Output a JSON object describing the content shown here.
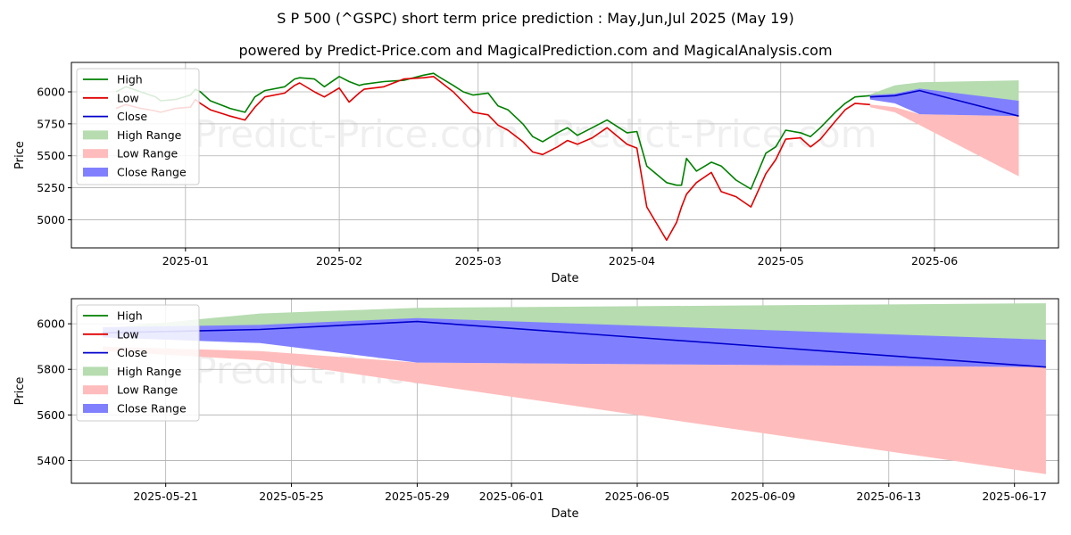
{
  "header": {
    "title": "S P 500 (^GSPC) short term price prediction : May,Jun,Jul 2025 (May 19)",
    "subtitle": "powered by Predict-Price.com and MagicalPrediction.com and MagicalAnalysis.com"
  },
  "watermark": "Predict-Price.com",
  "colors": {
    "high": "#008000",
    "low": "#e00000",
    "close": "#0000cc",
    "high_range": "#b6dcb0",
    "low_range": "#ffbcbc",
    "close_range": "#8080ff",
    "grid": "#b0b0b0"
  },
  "legend": {
    "items": [
      {
        "label": "High",
        "kind": "line",
        "color_key": "high"
      },
      {
        "label": "Low",
        "kind": "line",
        "color_key": "low"
      },
      {
        "label": "Close",
        "kind": "line",
        "color_key": "close"
      },
      {
        "label": "High Range",
        "kind": "patch",
        "color_key": "high_range"
      },
      {
        "label": "Low Range",
        "kind": "patch",
        "color_key": "low_range"
      },
      {
        "label": "Close Range",
        "kind": "patch",
        "color_key": "close_range"
      }
    ],
    "placement": "top-left"
  },
  "chart_data": [
    {
      "type": "line",
      "xlabel": "Date",
      "ylabel": "Price",
      "xlim": [
        "2024-12-09",
        "2025-06-26"
      ],
      "ylim": [
        4780,
        6230
      ],
      "xticks": [
        "2025-01-01",
        "2025-02-01",
        "2025-03-01",
        "2025-04-01",
        "2025-05-01",
        "2025-06-01"
      ],
      "xtick_labels": [
        "2025-01",
        "2025-02",
        "2025-03",
        "2025-04",
        "2025-05",
        "2025-06"
      ],
      "yticks": [
        5000,
        5250,
        5500,
        5750,
        6000
      ],
      "grid": true,
      "series": [
        {
          "name": "High",
          "color_key": "high",
          "points": [
            [
              "2024-12-18",
              6000
            ],
            [
              "2024-12-20",
              6040
            ],
            [
              "2024-12-23",
              6000
            ],
            [
              "2024-12-26",
              5960
            ],
            [
              "2024-12-27",
              5930
            ],
            [
              "2024-12-30",
              5940
            ],
            [
              "2025-01-02",
              5975
            ],
            [
              "2025-01-03",
              6020
            ],
            [
              "2025-01-04",
              6000
            ],
            [
              "2025-01-06",
              5930
            ],
            [
              "2025-01-10",
              5870
            ],
            [
              "2025-01-13",
              5840
            ],
            [
              "2025-01-15",
              5960
            ],
            [
              "2025-01-17",
              6010
            ],
            [
              "2025-01-21",
              6040
            ],
            [
              "2025-01-23",
              6100
            ],
            [
              "2025-01-24",
              6110
            ],
            [
              "2025-01-27",
              6100
            ],
            [
              "2025-01-29",
              6040
            ],
            [
              "2025-02-01",
              6120
            ],
            [
              "2025-02-03",
              6080
            ],
            [
              "2025-02-05",
              6050
            ],
            [
              "2025-02-06",
              6060
            ],
            [
              "2025-02-10",
              6080
            ],
            [
              "2025-02-14",
              6090
            ],
            [
              "2025-02-18",
              6130
            ],
            [
              "2025-02-20",
              6145
            ],
            [
              "2025-02-21",
              6120
            ],
            [
              "2025-02-24",
              6050
            ],
            [
              "2025-02-26",
              6000
            ],
            [
              "2025-02-28",
              5975
            ],
            [
              "2025-03-03",
              5990
            ],
            [
              "2025-03-05",
              5890
            ],
            [
              "2025-03-07",
              5860
            ],
            [
              "2025-03-10",
              5750
            ],
            [
              "2025-03-12",
              5650
            ],
            [
              "2025-03-14",
              5610
            ],
            [
              "2025-03-17",
              5680
            ],
            [
              "2025-03-19",
              5720
            ],
            [
              "2025-03-21",
              5660
            ],
            [
              "2025-03-24",
              5720
            ],
            [
              "2025-03-27",
              5780
            ],
            [
              "2025-03-31",
              5680
            ],
            [
              "2025-04-02",
              5690
            ],
            [
              "2025-04-04",
              5420
            ],
            [
              "2025-04-08",
              5290
            ],
            [
              "2025-04-10",
              5270
            ],
            [
              "2025-04-11",
              5270
            ],
            [
              "2025-04-12",
              5480
            ],
            [
              "2025-04-14",
              5380
            ],
            [
              "2025-04-17",
              5450
            ],
            [
              "2025-04-19",
              5420
            ],
            [
              "2025-04-22",
              5310
            ],
            [
              "2025-04-25",
              5240
            ],
            [
              "2025-04-28",
              5520
            ],
            [
              "2025-04-30",
              5570
            ],
            [
              "2025-05-02",
              5700
            ],
            [
              "2025-05-05",
              5680
            ],
            [
              "2025-05-07",
              5650
            ],
            [
              "2025-05-09",
              5720
            ],
            [
              "2025-05-12",
              5840
            ],
            [
              "2025-05-14",
              5910
            ],
            [
              "2025-05-16",
              5960
            ],
            [
              "2025-05-19",
              5970
            ]
          ]
        },
        {
          "name": "Low",
          "color_key": "low",
          "points": [
            [
              "2024-12-18",
              5870
            ],
            [
              "2024-12-20",
              5900
            ],
            [
              "2024-12-23",
              5870
            ],
            [
              "2024-12-26",
              5850
            ],
            [
              "2024-12-27",
              5840
            ],
            [
              "2024-12-30",
              5870
            ],
            [
              "2025-01-02",
              5880
            ],
            [
              "2025-01-03",
              5940
            ],
            [
              "2025-01-04",
              5910
            ],
            [
              "2025-01-06",
              5860
            ],
            [
              "2025-01-10",
              5810
            ],
            [
              "2025-01-13",
              5780
            ],
            [
              "2025-01-15",
              5880
            ],
            [
              "2025-01-17",
              5960
            ],
            [
              "2025-01-21",
              5990
            ],
            [
              "2025-01-23",
              6050
            ],
            [
              "2025-01-24",
              6070
            ],
            [
              "2025-01-27",
              6000
            ],
            [
              "2025-01-29",
              5960
            ],
            [
              "2025-02-01",
              6030
            ],
            [
              "2025-02-03",
              5920
            ],
            [
              "2025-02-05",
              5990
            ],
            [
              "2025-02-06",
              6020
            ],
            [
              "2025-02-10",
              6040
            ],
            [
              "2025-02-14",
              6100
            ],
            [
              "2025-02-18",
              6110
            ],
            [
              "2025-02-20",
              6120
            ],
            [
              "2025-02-21",
              6090
            ],
            [
              "2025-02-24",
              6000
            ],
            [
              "2025-02-26",
              5920
            ],
            [
              "2025-02-28",
              5840
            ],
            [
              "2025-03-03",
              5820
            ],
            [
              "2025-03-05",
              5740
            ],
            [
              "2025-03-07",
              5700
            ],
            [
              "2025-03-10",
              5610
            ],
            [
              "2025-03-12",
              5530
            ],
            [
              "2025-03-14",
              5510
            ],
            [
              "2025-03-17",
              5570
            ],
            [
              "2025-03-19",
              5620
            ],
            [
              "2025-03-21",
              5590
            ],
            [
              "2025-03-24",
              5640
            ],
            [
              "2025-03-27",
              5720
            ],
            [
              "2025-03-31",
              5590
            ],
            [
              "2025-04-02",
              5560
            ],
            [
              "2025-04-04",
              5100
            ],
            [
              "2025-04-08",
              4840
            ],
            [
              "2025-04-10",
              4980
            ],
            [
              "2025-04-11",
              5100
            ],
            [
              "2025-04-12",
              5200
            ],
            [
              "2025-04-14",
              5290
            ],
            [
              "2025-04-17",
              5370
            ],
            [
              "2025-04-19",
              5220
            ],
            [
              "2025-04-22",
              5180
            ],
            [
              "2025-04-25",
              5100
            ],
            [
              "2025-04-28",
              5360
            ],
            [
              "2025-04-30",
              5470
            ],
            [
              "2025-05-02",
              5630
            ],
            [
              "2025-05-05",
              5640
            ],
            [
              "2025-05-07",
              5570
            ],
            [
              "2025-05-09",
              5630
            ],
            [
              "2025-05-12",
              5770
            ],
            [
              "2025-05-14",
              5860
            ],
            [
              "2025-05-16",
              5910
            ],
            [
              "2025-05-19",
              5900
            ]
          ]
        },
        {
          "name": "Close",
          "color_key": "close",
          "points": [
            [
              "2025-05-19",
              5960
            ],
            [
              "2025-05-24",
              5970
            ],
            [
              "2025-05-29",
              6010
            ],
            [
              "2025-06-18",
              5810
            ]
          ]
        }
      ],
      "ranges": [
        {
          "name": "High Range",
          "color_key": "high_range",
          "upper": [
            [
              "2025-05-19",
              5980
            ],
            [
              "2025-05-24",
              6050
            ],
            [
              "2025-05-29",
              6075
            ],
            [
              "2025-06-18",
              6090
            ]
          ],
          "lower": [
            [
              "2025-05-19",
              5960
            ],
            [
              "2025-05-24",
              5970
            ],
            [
              "2025-05-29",
              6010
            ],
            [
              "2025-06-18",
              5930
            ]
          ]
        },
        {
          "name": "Low Range",
          "color_key": "low_range",
          "upper": [
            [
              "2025-05-19",
              5900
            ],
            [
              "2025-05-24",
              5880
            ],
            [
              "2025-05-29",
              5825
            ],
            [
              "2025-06-18",
              5810
            ]
          ],
          "lower": [
            [
              "2025-05-19",
              5880
            ],
            [
              "2025-05-24",
              5840
            ],
            [
              "2025-05-29",
              5740
            ],
            [
              "2025-06-18",
              5340
            ]
          ]
        },
        {
          "name": "Close Range",
          "color_key": "close_range",
          "upper": [
            [
              "2025-05-19",
              5975
            ],
            [
              "2025-05-24",
              5985
            ],
            [
              "2025-05-29",
              6025
            ],
            [
              "2025-06-18",
              5930
            ]
          ],
          "lower": [
            [
              "2025-05-19",
              5940
            ],
            [
              "2025-05-24",
              5910
            ],
            [
              "2025-05-29",
              5825
            ],
            [
              "2025-06-18",
              5810
            ]
          ]
        }
      ]
    },
    {
      "type": "line",
      "xlabel": "Date",
      "ylabel": "Price",
      "xlim": [
        "2025-05-18",
        "2025-06-18.4"
      ],
      "ylim": [
        5300,
        6110
      ],
      "xticks": [
        "2025-05-21",
        "2025-05-25",
        "2025-05-29",
        "2025-06-01",
        "2025-06-05",
        "2025-06-09",
        "2025-06-13",
        "2025-06-17"
      ],
      "xtick_labels": [
        "2025-05-21",
        "2025-05-25",
        "2025-05-29",
        "2025-06-01",
        "2025-06-05",
        "2025-06-09",
        "2025-06-13",
        "2025-06-17"
      ],
      "yticks": [
        5400,
        5600,
        5800,
        6000
      ],
      "grid": true,
      "series": [
        {
          "name": "Close",
          "color_key": "close",
          "points": [
            [
              "2025-05-19",
              5960
            ],
            [
              "2025-05-24",
              5975
            ],
            [
              "2025-05-29",
              6010
            ],
            [
              "2025-06-18",
              5810
            ]
          ]
        }
      ],
      "ranges": [
        {
          "name": "High Range",
          "color_key": "high_range",
          "upper": [
            [
              "2025-05-19",
              5980
            ],
            [
              "2025-05-24",
              6045
            ],
            [
              "2025-05-29",
              6070
            ],
            [
              "2025-06-18",
              6090
            ]
          ],
          "lower": [
            [
              "2025-05-19",
              5960
            ],
            [
              "2025-05-24",
              5975
            ],
            [
              "2025-05-29",
              6010
            ],
            [
              "2025-06-18",
              5930
            ]
          ]
        },
        {
          "name": "Low Range",
          "color_key": "low_range",
          "upper": [
            [
              "2025-05-19",
              5900
            ],
            [
              "2025-05-24",
              5880
            ],
            [
              "2025-05-29",
              5830
            ],
            [
              "2025-06-18",
              5810
            ]
          ],
          "lower": [
            [
              "2025-05-19",
              5880
            ],
            [
              "2025-05-24",
              5840
            ],
            [
              "2025-05-29",
              5740
            ],
            [
              "2025-06-18",
              5340
            ]
          ]
        },
        {
          "name": "Close Range",
          "color_key": "close_range",
          "upper": [
            [
              "2025-05-19",
              5985
            ],
            [
              "2025-05-24",
              5995
            ],
            [
              "2025-05-29",
              6025
            ],
            [
              "2025-06-18",
              5930
            ]
          ],
          "lower": [
            [
              "2025-05-19",
              5940
            ],
            [
              "2025-05-24",
              5915
            ],
            [
              "2025-05-29",
              5830
            ],
            [
              "2025-06-18",
              5810
            ]
          ]
        }
      ]
    }
  ]
}
